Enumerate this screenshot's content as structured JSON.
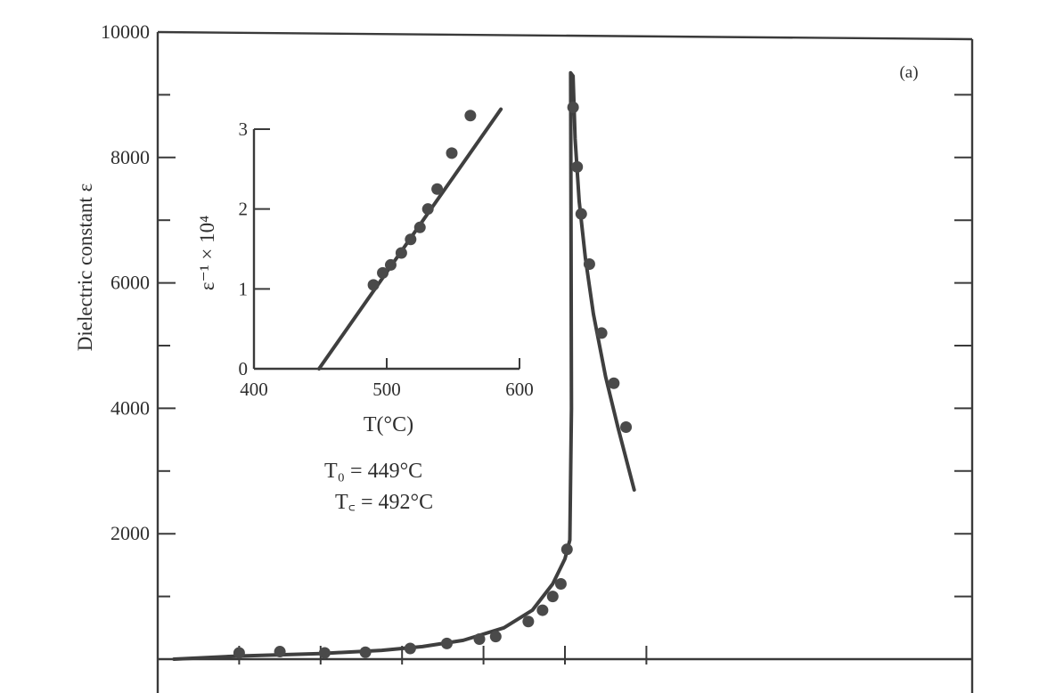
{
  "chart_data": {
    "type": "scatter",
    "panel_label": "(a)",
    "ylabel": "Dielectric constant ε",
    "yticks": [
      2000,
      4000,
      6000,
      8000,
      10000
    ],
    "ylim": [
      0,
      10000
    ],
    "xlim": [
      400,
      600
    ],
    "grid": false,
    "main_series": {
      "points": [
        {
          "x": 420,
          "y": 100
        },
        {
          "x": 430,
          "y": 120
        },
        {
          "x": 441,
          "y": 100
        },
        {
          "x": 451,
          "y": 110
        },
        {
          "x": 462,
          "y": 170
        },
        {
          "x": 471,
          "y": 250
        },
        {
          "x": 479,
          "y": 320
        },
        {
          "x": 483,
          "y": 360
        },
        {
          "x": 491,
          "y": 600
        },
        {
          "x": 494.5,
          "y": 780
        },
        {
          "x": 497,
          "y": 1000
        },
        {
          "x": 499,
          "y": 1200
        },
        {
          "x": 500.5,
          "y": 1750
        },
        {
          "x": 502,
          "y": 8800
        },
        {
          "x": 503,
          "y": 7850
        },
        {
          "x": 504,
          "y": 7100
        },
        {
          "x": 506,
          "y": 6300
        },
        {
          "x": 509,
          "y": 5200
        },
        {
          "x": 512,
          "y": 4400
        },
        {
          "x": 515,
          "y": 3700
        }
      ],
      "fit_curve": [
        {
          "x": 404,
          "y": 0
        },
        {
          "x": 420,
          "y": 50
        },
        {
          "x": 440,
          "y": 90
        },
        {
          "x": 455,
          "y": 140
        },
        {
          "x": 465,
          "y": 200
        },
        {
          "x": 475,
          "y": 300
        },
        {
          "x": 485,
          "y": 500
        },
        {
          "x": 492,
          "y": 780
        },
        {
          "x": 497,
          "y": 1200
        },
        {
          "x": 500,
          "y": 1600
        },
        {
          "x": 501.2,
          "y": 1900
        },
        {
          "x": 501.6,
          "y": 4000
        },
        {
          "x": 501.4,
          "y": 9350
        },
        {
          "x": 502,
          "y": 9300
        },
        {
          "x": 502.5,
          "y": 8300
        },
        {
          "x": 503.5,
          "y": 7300
        },
        {
          "x": 505,
          "y": 6400
        },
        {
          "x": 507,
          "y": 5500
        },
        {
          "x": 510,
          "y": 4500
        },
        {
          "x": 513,
          "y": 3700
        },
        {
          "x": 517,
          "y": 2700
        }
      ]
    },
    "inset": {
      "xlabel": "T(°C)",
      "ylabel": "ε⁻¹ × 10⁴",
      "xlim": [
        400,
        600
      ],
      "ylim": [
        0,
        3
      ],
      "xticks": [
        400,
        500,
        600
      ],
      "yticks": [
        0,
        1,
        2,
        3
      ],
      "points": [
        {
          "x": 490,
          "y": 1.05
        },
        {
          "x": 497,
          "y": 1.2
        },
        {
          "x": 503,
          "y": 1.3
        },
        {
          "x": 511,
          "y": 1.45
        },
        {
          "x": 518,
          "y": 1.62
        },
        {
          "x": 525,
          "y": 1.77
        },
        {
          "x": 531,
          "y": 2.0
        },
        {
          "x": 538,
          "y": 2.25
        },
        {
          "x": 549,
          "y": 2.7
        },
        {
          "x": 563,
          "y": 3.17
        }
      ],
      "fit_line": [
        {
          "x": 449,
          "y": 0
        },
        {
          "x": 586,
          "y": 3.25
        }
      ],
      "annotations": [
        "T₀ = 449°C",
        "T꜀ = 492°C"
      ]
    }
  }
}
